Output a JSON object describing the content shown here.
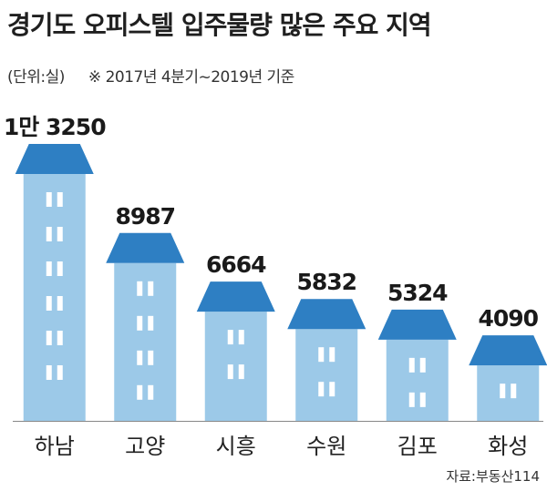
{
  "title": "경기도 오피스텔 입주물량 많은 주요 지역",
  "unit_label": "(단위:실)",
  "note": "※ 2017년 4분기~2019년 기준",
  "source": "자료:부동산114",
  "colors": {
    "roof": "#2e7fc3",
    "building": "#9cc9e8",
    "window": "#ffffff",
    "baseline": "#888888"
  },
  "chart_data": {
    "type": "bar",
    "categories": [
      "하남",
      "고양",
      "시흥",
      "수원",
      "김포",
      "화성"
    ],
    "values": [
      13250,
      8987,
      6664,
      5832,
      5324,
      4090
    ],
    "value_labels": [
      "1만 3250",
      "8987",
      "6664",
      "5832",
      "5324",
      "4090"
    ],
    "title": "경기도 오피스텔 입주물량 많은 주요 지역",
    "xlabel": "",
    "ylabel": "",
    "unit": "실",
    "grid": false,
    "legend": "none"
  }
}
